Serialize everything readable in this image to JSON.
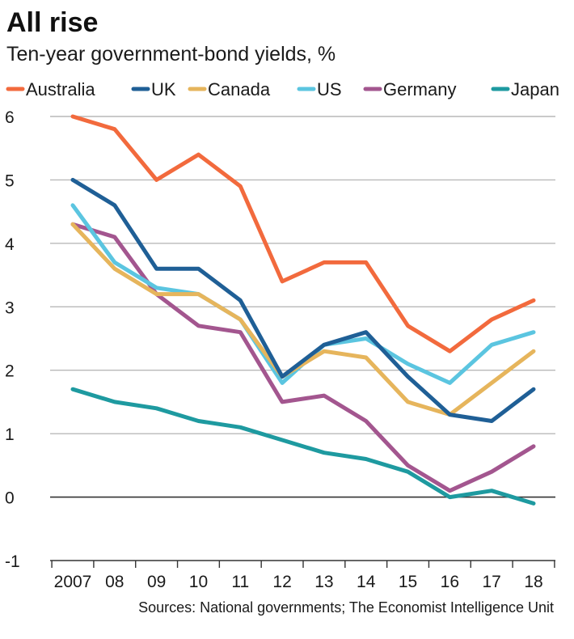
{
  "chart_data": {
    "type": "line",
    "title": "All rise",
    "subtitle": "Ten-year government-bond yields, %",
    "source": "Sources: National governments; The Economist Intelligence Unit",
    "x": [
      2007,
      2008,
      2009,
      2010,
      2011,
      2012,
      2013,
      2014,
      2015,
      2016,
      2017,
      2018
    ],
    "x_tick_labels": [
      "2007",
      "08",
      "09",
      "10",
      "11",
      "12",
      "13",
      "14",
      "15",
      "16",
      "17",
      "18"
    ],
    "y_ticks": [
      "6",
      "5",
      "4",
      "3",
      "2",
      "1",
      "0",
      "-1"
    ],
    "ylim": [
      -1,
      6
    ],
    "grid": true,
    "legend_position": "top",
    "series": [
      {
        "name": "Australia",
        "color": "#f26a3d",
        "values": [
          6.0,
          5.8,
          5.0,
          5.4,
          4.9,
          3.4,
          3.7,
          3.7,
          2.7,
          2.3,
          2.8,
          3.1
        ]
      },
      {
        "name": "UK",
        "color": "#1f5f96",
        "values": [
          5.0,
          4.6,
          3.6,
          3.6,
          3.1,
          1.9,
          2.4,
          2.6,
          1.9,
          1.3,
          1.2,
          1.7
        ]
      },
      {
        "name": "Canada",
        "color": "#e6b55c",
        "values": [
          4.3,
          3.6,
          3.2,
          3.2,
          2.8,
          1.9,
          2.3,
          2.2,
          1.5,
          1.3,
          1.8,
          2.3
        ]
      },
      {
        "name": "US",
        "color": "#5bc5e0",
        "values": [
          4.6,
          3.7,
          3.3,
          3.2,
          2.8,
          1.8,
          2.4,
          2.5,
          2.1,
          1.8,
          2.4,
          2.6
        ]
      },
      {
        "name": "Germany",
        "color": "#a3568f",
        "values": [
          4.3,
          4.1,
          3.2,
          2.7,
          2.6,
          1.5,
          1.6,
          1.2,
          0.5,
          0.1,
          0.4,
          0.8
        ]
      },
      {
        "name": "Japan",
        "color": "#1e9aa0",
        "values": [
          1.7,
          1.5,
          1.4,
          1.2,
          1.1,
          0.9,
          0.7,
          0.6,
          0.4,
          0.0,
          0.1,
          -0.1
        ]
      }
    ]
  }
}
